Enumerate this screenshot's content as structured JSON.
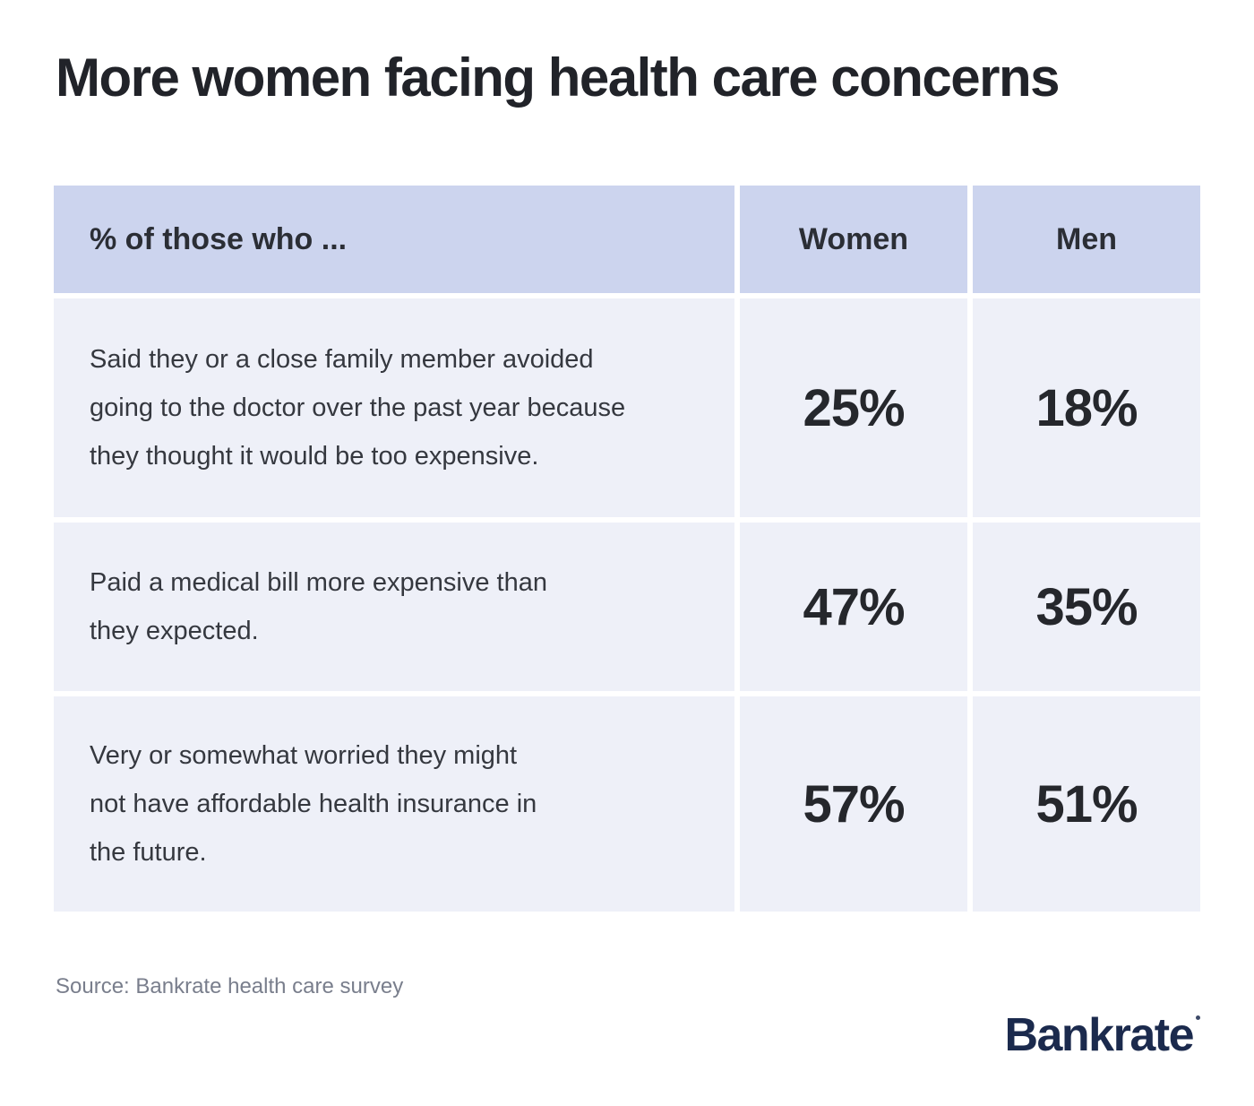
{
  "title": "More women facing health care concerns",
  "table": {
    "header": {
      "label": "% of those who ...",
      "col_women": "Women",
      "col_men": "Men"
    },
    "rows": [
      {
        "label": "Said they or a close family member avoided\ngoing to the doctor over the past year because\nthey thought it would be too expensive.",
        "women": "25%",
        "men": "18%"
      },
      {
        "label": "Paid a medical bill more expensive than\nthey expected.",
        "women": "47%",
        "men": "35%"
      },
      {
        "label": "Very or somewhat worried they might\nnot have affordable health insurance in\nthe future.",
        "women": "57%",
        "men": "51%"
      }
    ]
  },
  "source": "Source: Bankrate health care survey",
  "logo_text": "Bankrate",
  "colors": {
    "header_bg": "#ccd4ee",
    "row_bg": "#eef0f8",
    "title_text": "#212329",
    "body_text": "#35383f",
    "value_text": "#25272c",
    "source_text": "#797e8c",
    "logo_navy": "#1b2a4d",
    "page_bg": "#ffffff"
  },
  "chart_data": {
    "type": "table",
    "title": "More women facing health care concerns",
    "columns": [
      "% of those who ...",
      "Women",
      "Men"
    ],
    "rows": [
      {
        "statement": "Said they or a close family member avoided going to the doctor over the past year because they thought it would be too expensive.",
        "women_pct": 25,
        "men_pct": 18
      },
      {
        "statement": "Paid a medical bill more expensive than they expected.",
        "women_pct": 47,
        "men_pct": 35
      },
      {
        "statement": "Very or somewhat worried they might not have affordable health insurance in the future.",
        "women_pct": 57,
        "men_pct": 51
      }
    ],
    "source": "Source: Bankrate health care survey",
    "units": "percent"
  }
}
